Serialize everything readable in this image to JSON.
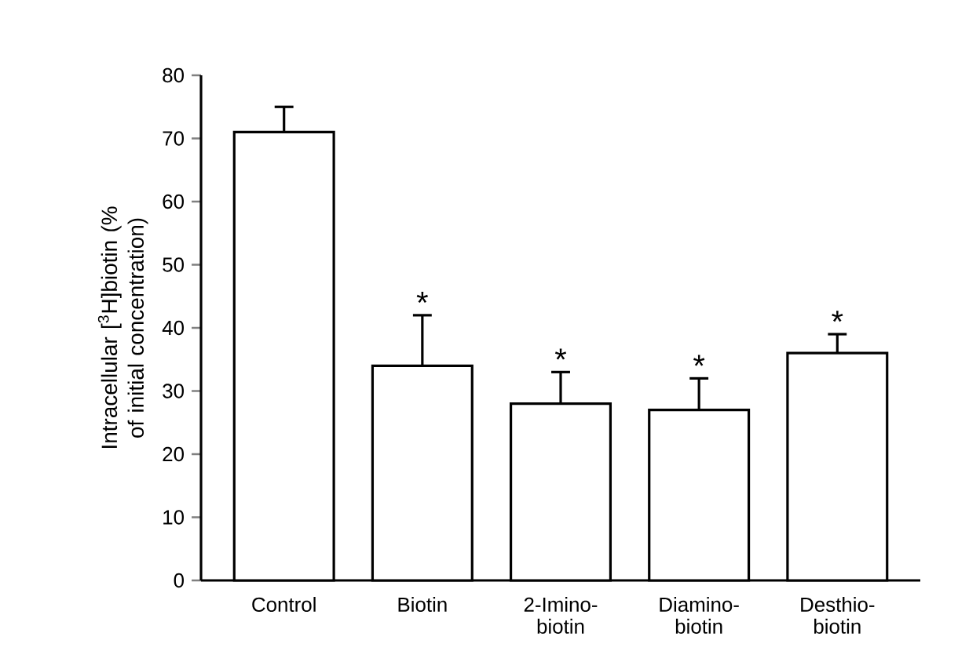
{
  "chart_data": {
    "type": "bar",
    "ylabel": "Intracellular [$^{3}$H]biotin (% of initial concentration)",
    "categories": [
      "Control",
      "Biotin",
      "2-Imino- biotin",
      "Diamino- biotin",
      "Desthio- biotin"
    ],
    "values": [
      71,
      34,
      28,
      27,
      36
    ],
    "errors": [
      4,
      8,
      5,
      5,
      3
    ],
    "color": "#ffffff",
    "ylim": [
      0,
      80
    ],
    "yticks": [
      0,
      10,
      20,
      30,
      40,
      50,
      60,
      70,
      80
    ],
    "annotations": [
      {
        "text": "*",
        "x": "Biotin",
        "y": 42
      },
      {
        "text": "*",
        "x": "2-Imino- biotin",
        "y": 33
      },
      {
        "text": "*",
        "x": "Diamino- biotin",
        "y": 32
      },
      {
        "text": "*",
        "x": "Desthio- biotin",
        "y": 39
      }
    ],
    "grid": false
  }
}
